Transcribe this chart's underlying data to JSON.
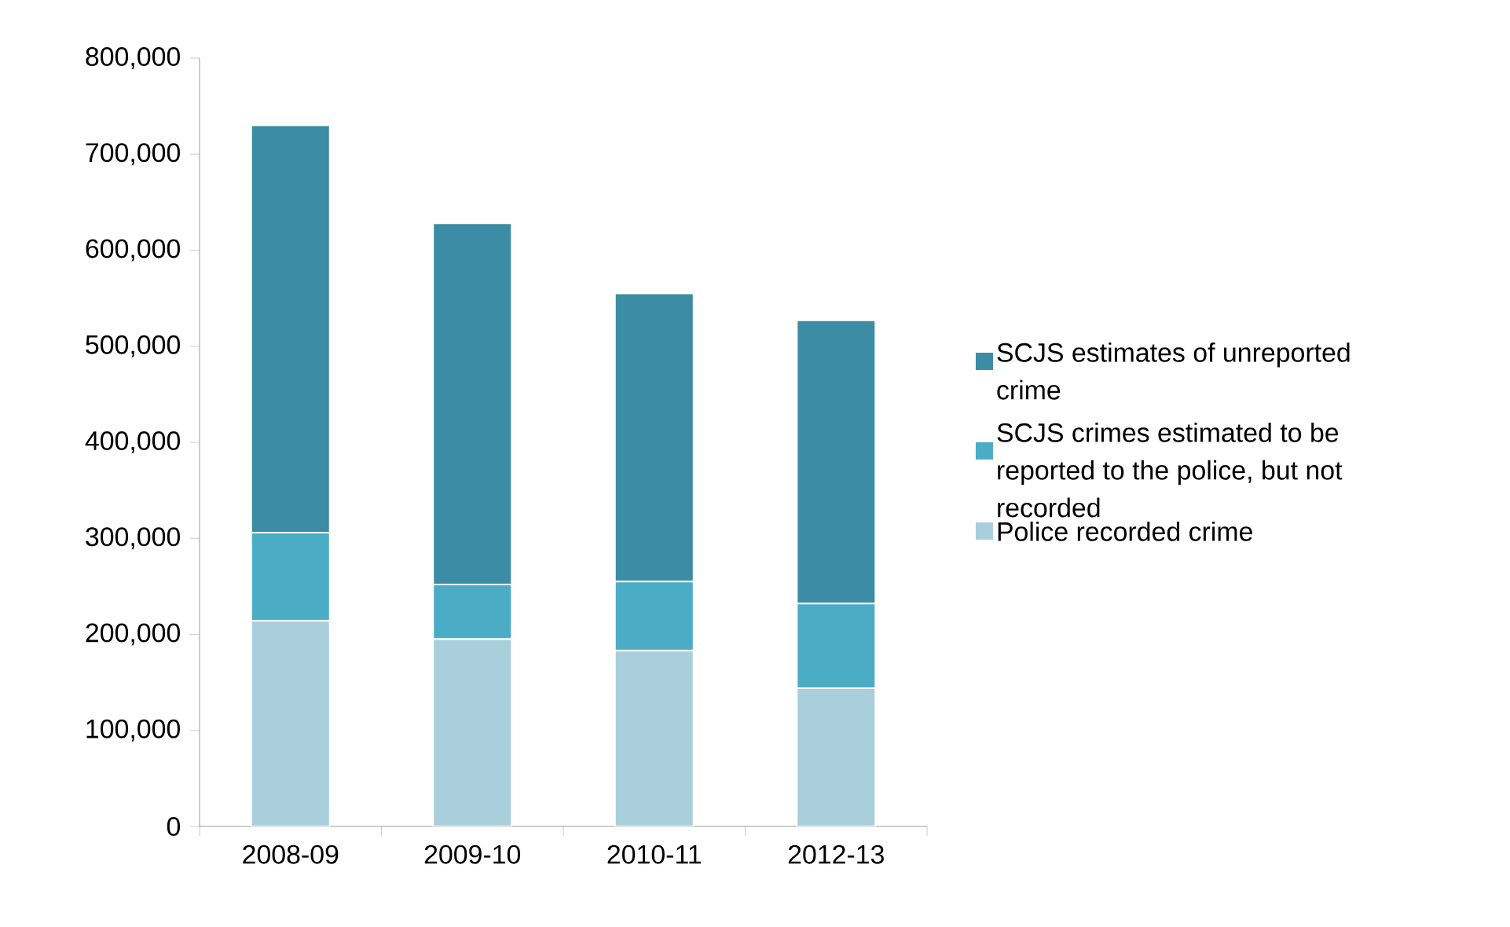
{
  "chart_data": {
    "type": "bar",
    "stacked": true,
    "categories": [
      "2008-09",
      "2009-10",
      "2010-11",
      "2012-13"
    ],
    "series": [
      {
        "name": "Police recorded crime",
        "color": "#a9cfdd",
        "values": [
          214000,
          195000,
          183000,
          144000
        ]
      },
      {
        "name": "SCJS crimes estimated to be reported to the police, but not recorded",
        "color": "#4bacc6",
        "values": [
          92000,
          57000,
          72000,
          88000
        ]
      },
      {
        "name": "SCJS estimates of unreported crime",
        "color": "#3b8ca4",
        "values": [
          424000,
          376000,
          300000,
          295000
        ]
      }
    ],
    "ylim": [
      0,
      800000
    ],
    "yticks": [
      {
        "value": 0,
        "label": "0"
      },
      {
        "value": 100000,
        "label": "100,000"
      },
      {
        "value": 200000,
        "label": "200,000"
      },
      {
        "value": 300000,
        "label": "300,000"
      },
      {
        "value": 400000,
        "label": "400,000"
      },
      {
        "value": 500000,
        "label": "500,000"
      },
      {
        "value": 600000,
        "label": "600,000"
      },
      {
        "value": 700000,
        "label": "700,000"
      },
      {
        "value": 800000,
        "label": "800,000"
      }
    ],
    "legend": "right"
  }
}
